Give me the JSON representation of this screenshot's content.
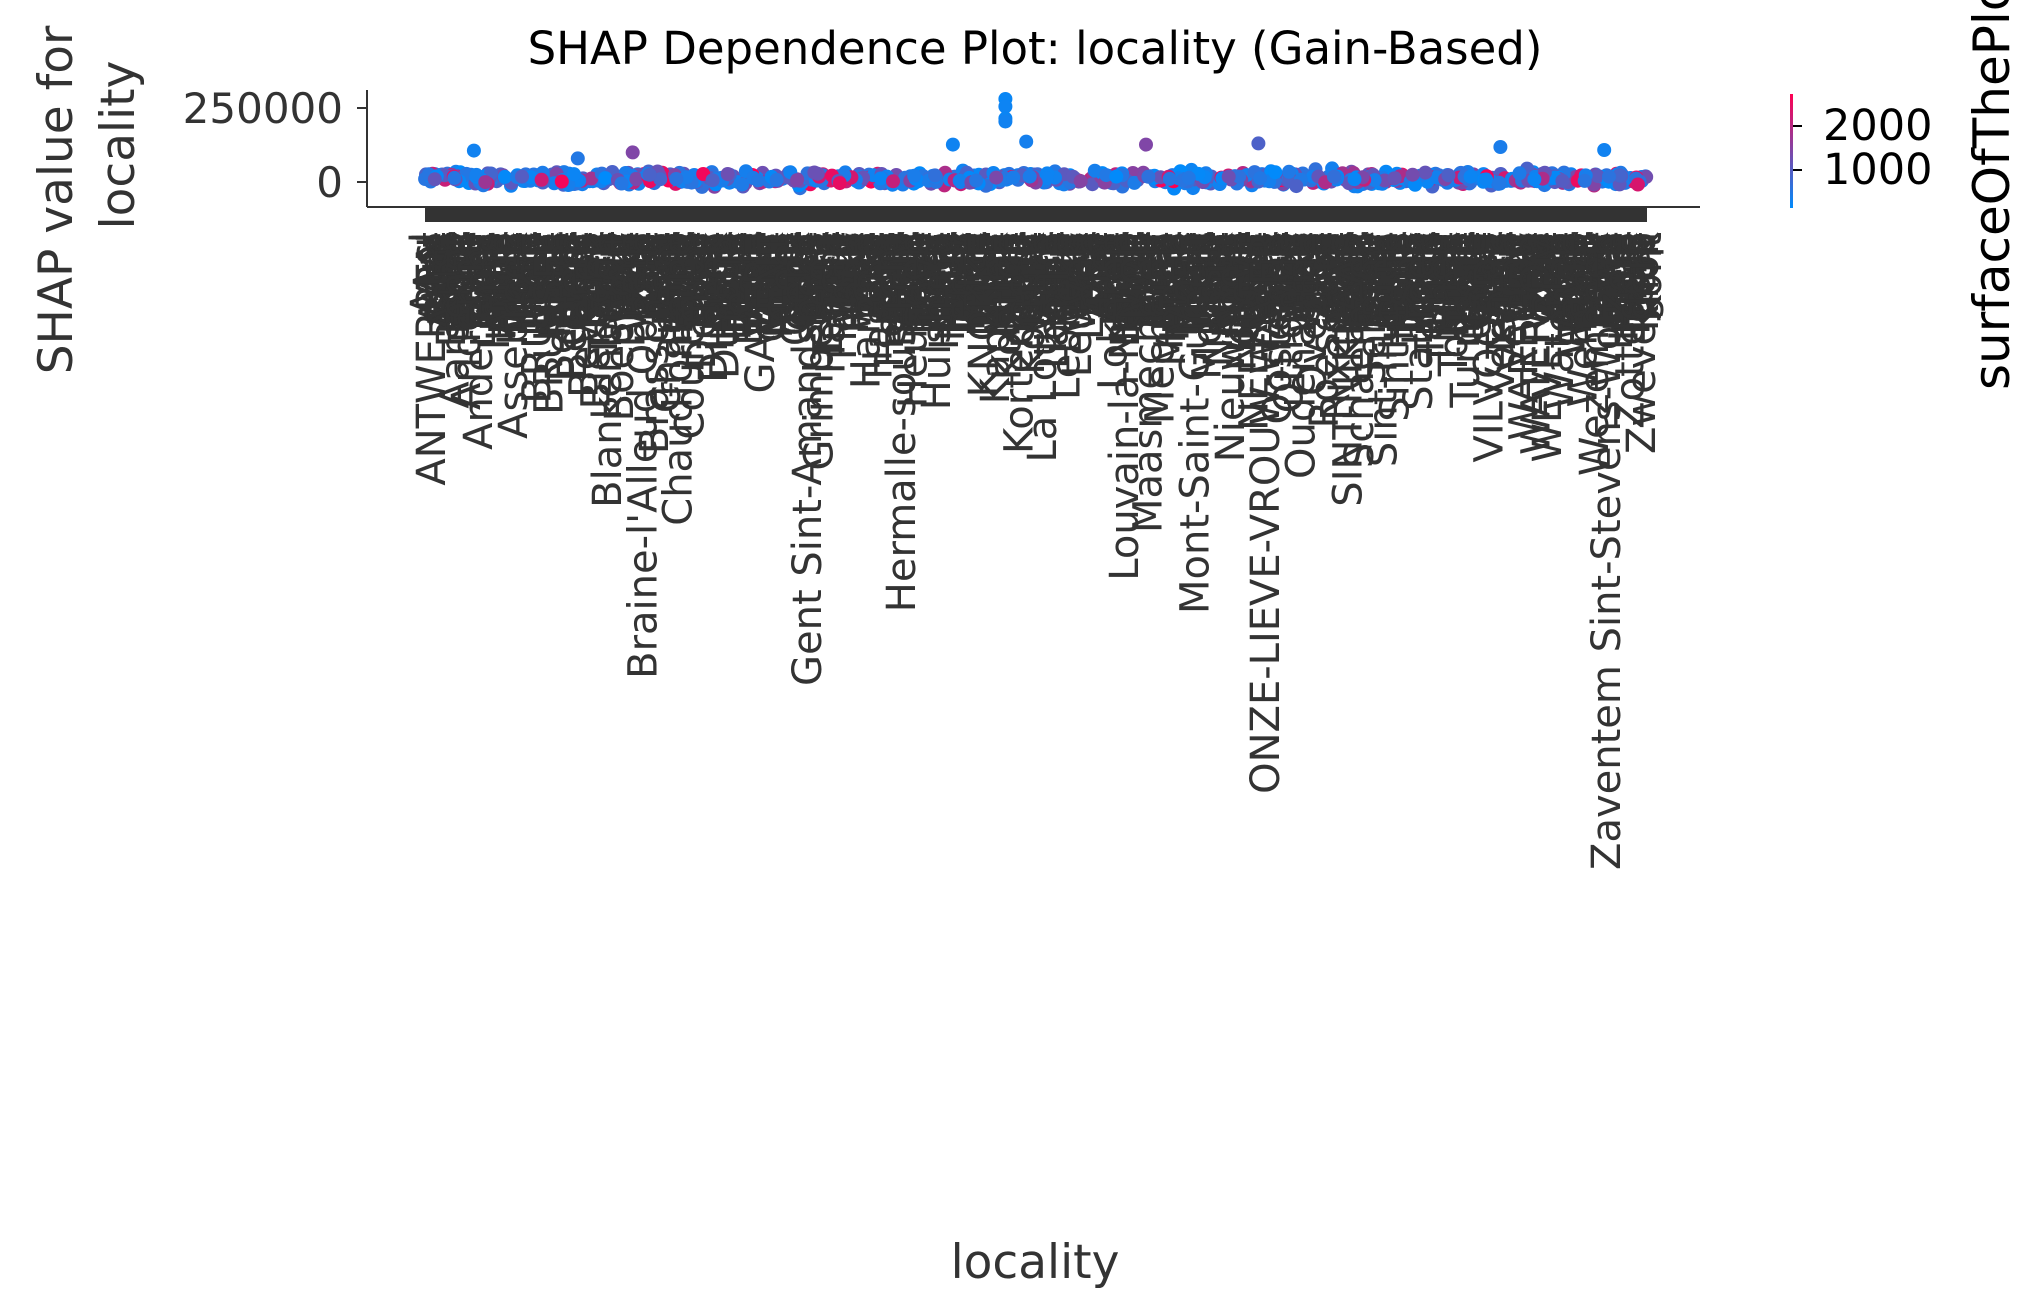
{
  "chart_data": {
    "type": "scatter",
    "title": "SHAP Dependence Plot: locality (Gain-Based)",
    "xlabel": "locality",
    "ylabel_line1": "SHAP value for",
    "ylabel_line2": "locality",
    "yticks": [
      {
        "value": 250000,
        "label": "250000"
      },
      {
        "value": 0,
        "label": "0"
      }
    ],
    "ylim": [
      -90000,
      300000
    ],
    "colorbar": {
      "label": "surfaceOfThePlot",
      "range": [
        0,
        3000
      ],
      "low_color": "#008bfb",
      "high_color": "#ff0052",
      "ticks": [
        {
          "value": 2000,
          "label": "2000"
        },
        {
          "value": 1000,
          "label": "1000"
        }
      ]
    },
    "highlight_points": [
      {
        "x": 0.475,
        "y": 270000,
        "c": 100
      },
      {
        "x": 0.475,
        "y": 245000,
        "c": 150
      },
      {
        "x": 0.475,
        "y": 205000,
        "c": 120
      },
      {
        "x": 0.475,
        "y": 195000,
        "c": 200
      },
      {
        "x": 0.432,
        "y": 118000,
        "c": 180
      },
      {
        "x": 0.492,
        "y": 128000,
        "c": 250
      },
      {
        "x": 0.59,
        "y": 118000,
        "c": 1500
      },
      {
        "x": 0.682,
        "y": 122000,
        "c": 900
      },
      {
        "x": 0.88,
        "y": 110000,
        "c": 300
      },
      {
        "x": 0.04,
        "y": 98000,
        "c": 200
      },
      {
        "x": 0.965,
        "y": 100000,
        "c": 200
      },
      {
        "x": 0.17,
        "y": 92000,
        "c": 1500
      },
      {
        "x": 0.125,
        "y": 72000,
        "c": 400
      }
    ],
    "localities_full": [
      "ANTWERPEN",
      "Aalst",
      "Aarschot",
      "Andenne",
      "Anderlecht",
      "Ans",
      "Arlon",
      "Assebroek",
      "Ath",
      "BRUGGE",
      "BRUSSEL",
      "Beersel",
      "Bertem",
      "Beveren",
      "Bierbeek",
      "Blankenberge",
      "Boechout",
      "Boom",
      "Braine-l'Alleud Ophain",
      "Brasschaat",
      "Charleroi",
      "Chaudfontaine",
      "Courcelles",
      "Deinze",
      "Dilbeek",
      "Durbuy",
      "Eeklo",
      "Evere",
      "GAVERE",
      "GENT",
      "Geel",
      "Genk",
      "Gent Sint-Amandsberg",
      "Grimbergen",
      "Haacht",
      "Habay",
      "Halle",
      "Hamme",
      "Hasselt",
      "Herent",
      "Hermalle-sous-Huy",
      "Heusden",
      "Hove",
      "Hulshout",
      "Huy",
      "Ieper",
      "Jette",
      "KNOKKE",
      "Kapellen",
      "Kontich",
      "Kortenberg",
      "Kortrijk",
      "La Louviere",
      "Laarne",
      "Lebbeke",
      "Leuven",
      "Liege",
      "Lier",
      "Lokeren",
      "Louvain-la-Neuve",
      "MOL",
      "Maasmechelen",
      "Mechelen",
      "Menen",
      "Mons",
      "Mont-Saint-Guibert",
      "Mortsel",
      "Namur",
      "Nieuwpoort",
      "Ninove",
      "NEERPELT",
      "ONZE-LIEVE-VROUW-WAVER",
      "Oostende",
      "Ottignies",
      "Oudenaarde",
      "Overijse",
      "Roeselare",
      "Rixensart",
      "SINT-NIKLAAS",
      "Schaerbeek",
      "Seraing",
      "Sint-Truiden",
      "Sint-Gillis",
      "Spa",
      "Stabroek",
      "Temse",
      "Tienen",
      "Tournai",
      "Turnhout",
      "Uccle",
      "VILVOORDE",
      "Verviers",
      "Veurne",
      "WAREGEM",
      "WATERLOO",
      "WEVELGEM",
      "Waterloo",
      "Wavre",
      "Wemmel",
      "Wezembeek",
      "Zaventem Sint-Stevens-Woluwe",
      "Zele",
      "Zottegem",
      "Zwevegem"
    ],
    "locality_fragments": [
      "Ansl",
      "Aal",
      "Ant",
      "Asse",
      "Alte",
      "Bras",
      "Brug",
      "Berl",
      "Bels",
      "Boom",
      "Bonh",
      "Char",
      "Cour",
      "Dil",
      "Diep",
      "Eeke",
      "Ever",
      "Etter",
      "Gav",
      "Gent",
      "Geel",
      "Grim",
      "Hab",
      "Hal",
      "Hame",
      "Hers",
      "Herm",
      "Hove",
      "Hous",
      "Huls",
      "Ieper",
      "Jodo",
      "Kap",
      "Knok",
      "Kont",
      "Kort",
      "Lap",
      "Lauw",
      "Lede",
      "Leuv",
      "Lier",
      "Lok",
      "Mol",
      "Maas",
      "Mech",
      "Mons",
      "Mort",
      "Nam",
      "Nijl",
      "Nin",
      "ONZE",
      "Oost",
      "Ottig",
      "Over",
      "Ren",
      "Roes",
      "SINT",
      "Scha",
      "Sera",
      "Sint",
      "Spa",
      "Temse",
      "Tien",
      "Tour",
      "Turn",
      "Ucc",
      "Vilv",
      "Verv",
      "WAR",
      "WAT",
      "Wav",
      "Wem",
      "Wez",
      "Zav",
      "Zele",
      "Zot",
      "Zwe"
    ]
  }
}
